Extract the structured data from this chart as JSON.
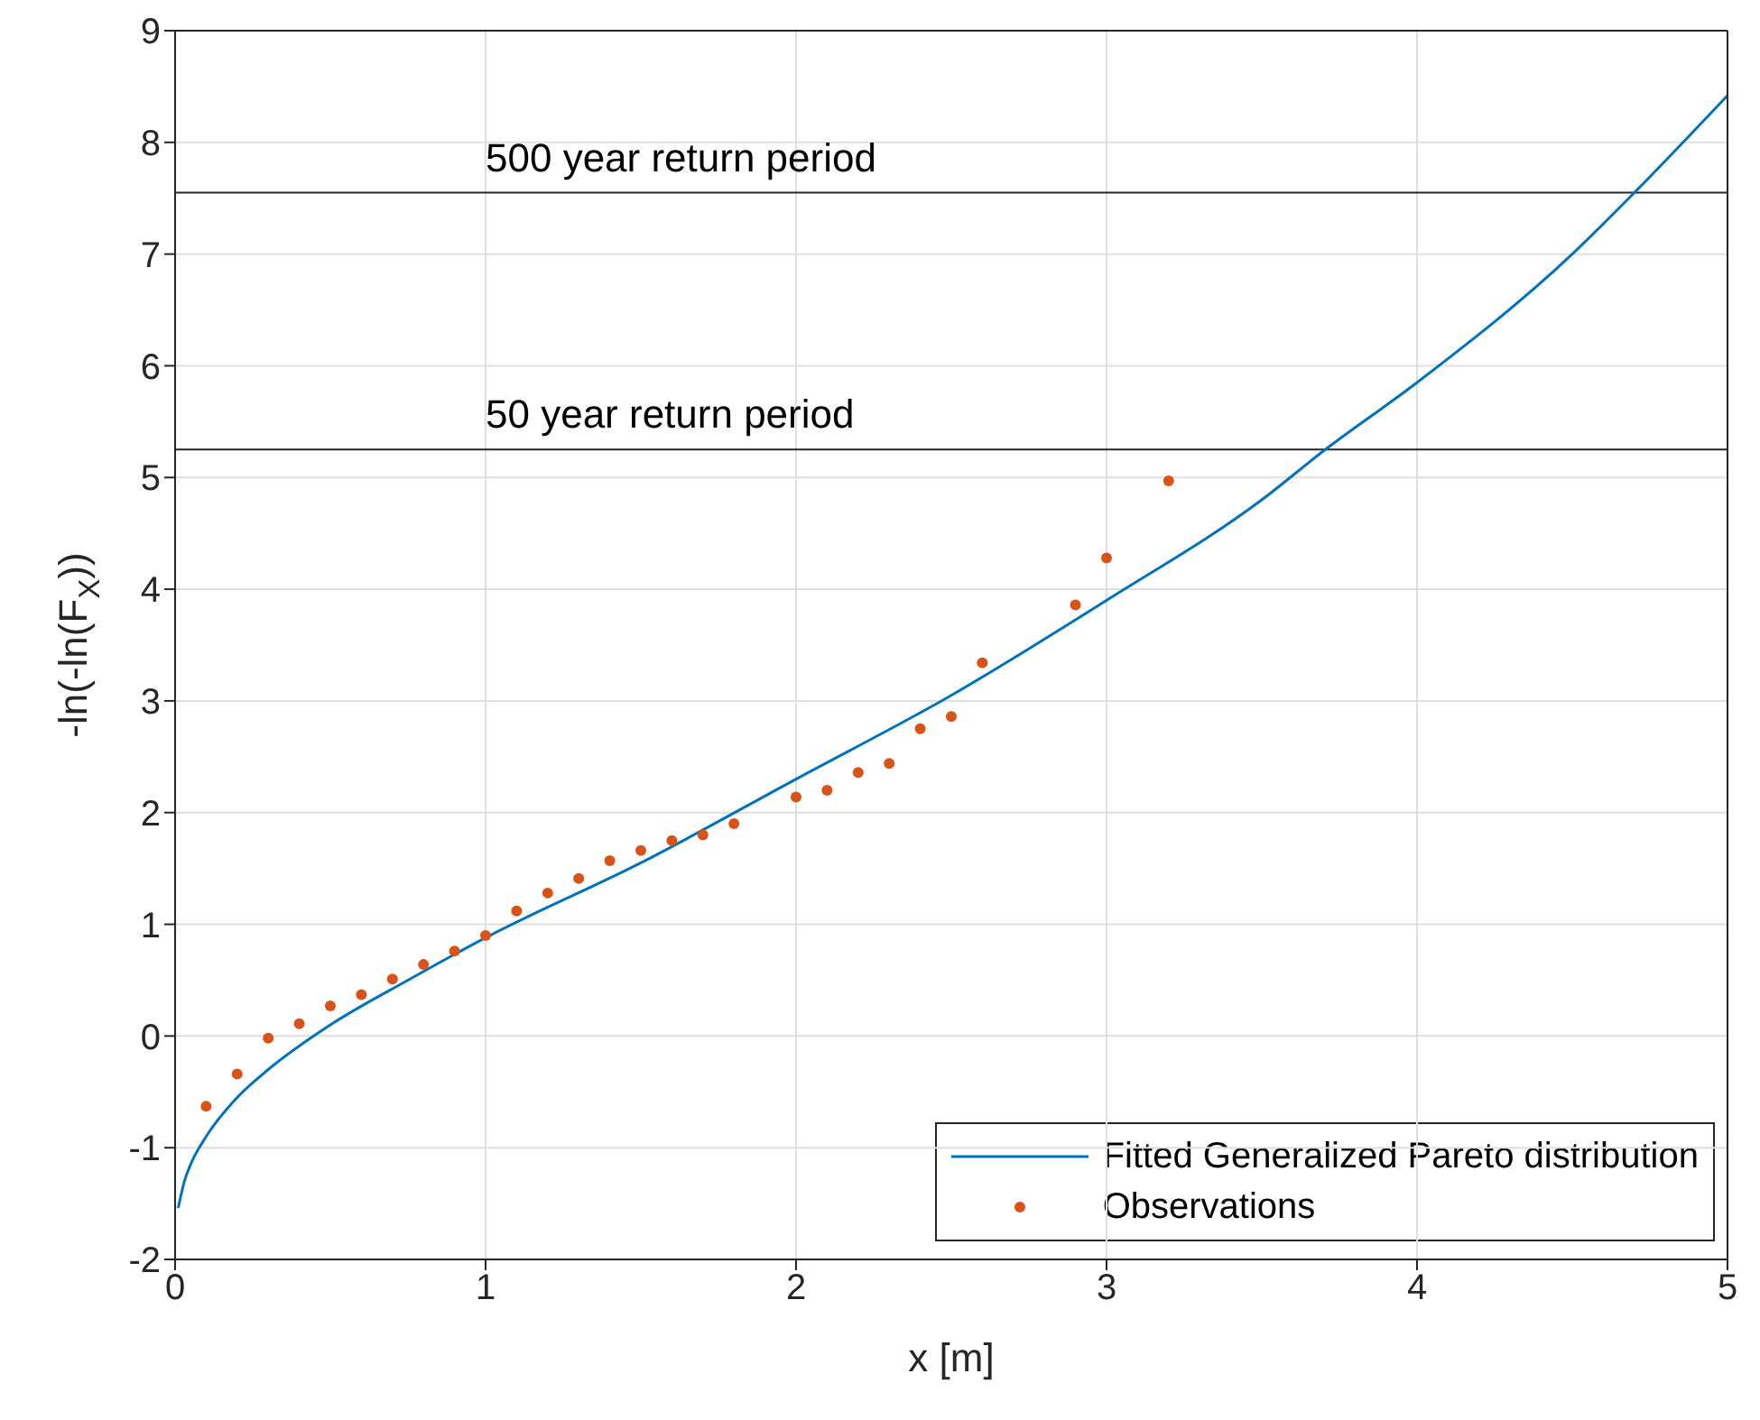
{
  "chart_data": {
    "type": "line",
    "xlabel": "x [m]",
    "ylabel": "-ln(-ln(F$_{X}$))",
    "xlim": [
      0,
      5
    ],
    "xticks": [
      0,
      1,
      2,
      3,
      4,
      5
    ],
    "ylim": [
      -2,
      9
    ],
    "yticks": [
      -2,
      -1,
      0,
      1,
      2,
      3,
      4,
      5,
      6,
      7,
      8,
      9
    ],
    "grid": true,
    "legend": "bottom right",
    "series": [
      {
        "name": "Fitted Generalized Pareto distribution",
        "type": "line",
        "color": "#0072bd",
        "marker": "none",
        "line_style": "solid",
        "x": [
          0.01,
          0.03,
          0.05,
          0.1,
          0.2,
          0.3,
          0.5,
          0.75,
          1,
          1.5,
          2,
          2.5,
          3,
          3.5,
          3.7,
          4,
          4.5,
          4.7,
          5
        ],
        "values": [
          -1.54,
          -1.3,
          -1.15,
          -0.9,
          -0.55,
          -0.3,
          0.1,
          0.5,
          0.88,
          1.55,
          2.3,
          3.05,
          3.9,
          4.8,
          5.24,
          5.85,
          7.0,
          7.55,
          8.42
        ]
      },
      {
        "name": "Observations",
        "type": "scatter",
        "color": "#d95319",
        "marker": "circle",
        "x": [
          0.1,
          0.2,
          0.3,
          0.4,
          0.5,
          0.6,
          0.7,
          0.8,
          0.9,
          1.0,
          1.1,
          1.2,
          1.3,
          1.4,
          1.5,
          1.6,
          1.7,
          1.8,
          2.0,
          2.1,
          2.2,
          2.3,
          2.4,
          2.5,
          2.6,
          2.9,
          3.0,
          3.2
        ],
        "values": [
          -0.63,
          -0.34,
          -0.02,
          0.11,
          0.27,
          0.37,
          0.51,
          0.64,
          0.76,
          0.9,
          1.12,
          1.28,
          1.41,
          1.57,
          1.66,
          1.75,
          1.8,
          1.9,
          2.14,
          2.2,
          2.36,
          2.44,
          2.75,
          2.86,
          3.34,
          3.86,
          4.28,
          4.97
        ]
      }
    ],
    "ref_lines": [
      {
        "axis": "y",
        "value": 5.25,
        "label": "50 year return period",
        "color": "#262626"
      },
      {
        "axis": "y",
        "value": 7.55,
        "label": "500 year return period",
        "color": "#262626"
      }
    ]
  }
}
